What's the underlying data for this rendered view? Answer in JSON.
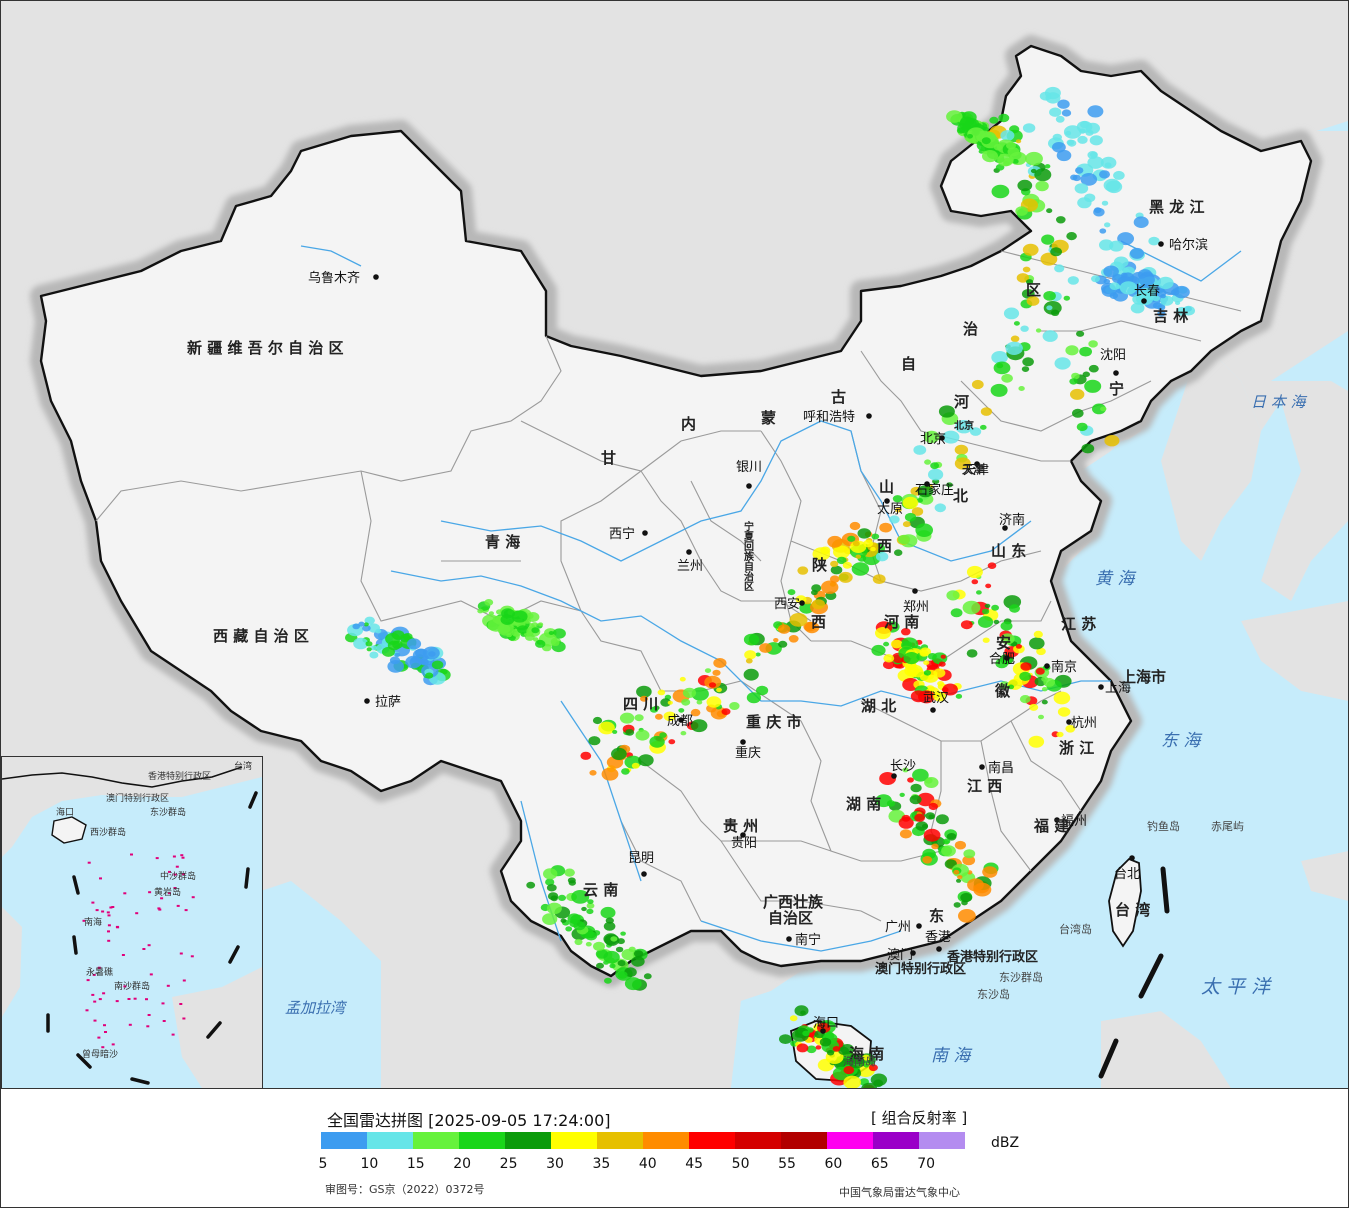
{
  "title": "全国雷达拼图 [2025-09-05 17:24:00]",
  "product": "[ 组合反射率 ]",
  "unit": "dBZ",
  "approval": "审图号：GS京（2022）0372号",
  "source": "中国气象局雷达气象中心",
  "legend": {
    "colors": [
      "#3d9cf0",
      "#66e5e8",
      "#66f23c",
      "#19d619",
      "#0b9b0b",
      "#ffff00",
      "#e6c000",
      "#ff8c00",
      "#ff0000",
      "#d40000",
      "#b20000",
      "#ff00f0",
      "#9a00c8",
      "#b48cf0"
    ],
    "ticks": [
      "5",
      "10",
      "15",
      "20",
      "25",
      "30",
      "35",
      "40",
      "45",
      "50",
      "55",
      "60",
      "65",
      "70"
    ]
  },
  "regions": [
    {
      "name": "新疆维吾尔自治区",
      "label": "新 疆 维 吾 尔 自 治 区"
    },
    {
      "name": "西藏自治区",
      "label": "西 藏 自 治 区"
    },
    {
      "name": "青海",
      "label": "青          海"
    },
    {
      "name": "甘肃",
      "label": "甘"
    },
    {
      "name": "内蒙古自治区-1",
      "label": "内"
    },
    {
      "name": "内蒙古自治区-2",
      "label": "蒙"
    },
    {
      "name": "内蒙古自治区-3",
      "label": "古"
    },
    {
      "name": "内蒙古自治区-4",
      "label": "自"
    },
    {
      "name": "内蒙古自治区-5",
      "label": "治"
    },
    {
      "name": "内蒙古自治区-6",
      "label": "区"
    },
    {
      "name": "黑龙江",
      "label": "黑 龙 江"
    },
    {
      "name": "吉林",
      "label": "吉 林"
    },
    {
      "name": "辽宁",
      "label": "宁"
    },
    {
      "name": "河北-1",
      "label": "河"
    },
    {
      "name": "河北-2",
      "label": "北"
    },
    {
      "name": "山西-1",
      "label": "山"
    },
    {
      "name": "山西-2",
      "label": "西"
    },
    {
      "name": "陕西-1",
      "label": "陕"
    },
    {
      "name": "陕西-2",
      "label": "西"
    },
    {
      "name": "山东",
      "label": "山 东"
    },
    {
      "name": "河南",
      "label": "河   南"
    },
    {
      "name": "江苏",
      "label": "江 苏"
    },
    {
      "name": "安徽-1",
      "label": "安"
    },
    {
      "name": "安徽-2",
      "label": "徽"
    },
    {
      "name": "上海市",
      "label": "上海市"
    },
    {
      "name": "浙江",
      "label": "浙 江"
    },
    {
      "name": "湖北",
      "label": "湖   北"
    },
    {
      "name": "湖南",
      "label": "湖     南"
    },
    {
      "name": "江西",
      "label": "江     西"
    },
    {
      "name": "福建",
      "label": "福 建"
    },
    {
      "name": "四川",
      "label": "四  川"
    },
    {
      "name": "重庆市",
      "label": "重 庆 市"
    },
    {
      "name": "贵州",
      "label": "贵   州"
    },
    {
      "name": "云南",
      "label": "云   南"
    },
    {
      "name": "广西壮族自治区",
      "label": "广西壮族"
    },
    {
      "name": "广西壮族自治区-2",
      "label": "自治区"
    },
    {
      "name": "广东",
      "label": "东"
    },
    {
      "name": "海南",
      "label": "海 南"
    },
    {
      "name": "台湾",
      "label": "台 湾"
    },
    {
      "name": "香港特别行政区",
      "label": "香港特别行政区"
    },
    {
      "name": "澳门特别行政区",
      "label": "澳门特别行政区"
    },
    {
      "name": "宁夏回族自治区",
      "label": "宁夏回族自治区"
    },
    {
      "name": "天津市",
      "label": "天津"
    },
    {
      "name": "北京市",
      "label": "北京"
    }
  ],
  "cities": [
    {
      "name": "乌鲁木齐"
    },
    {
      "name": "拉萨"
    },
    {
      "name": "西宁"
    },
    {
      "name": "兰州"
    },
    {
      "name": "银川"
    },
    {
      "name": "呼和浩特"
    },
    {
      "name": "哈尔滨"
    },
    {
      "name": "长春"
    },
    {
      "name": "沈阳"
    },
    {
      "name": "北京"
    },
    {
      "name": "天津"
    },
    {
      "name": "石家庄"
    },
    {
      "name": "太原"
    },
    {
      "name": "济南"
    },
    {
      "name": "郑州"
    },
    {
      "name": "西安"
    },
    {
      "name": "南京"
    },
    {
      "name": "合肥"
    },
    {
      "name": "上海"
    },
    {
      "name": "杭州"
    },
    {
      "name": "武汉"
    },
    {
      "name": "长沙"
    },
    {
      "name": "南昌"
    },
    {
      "name": "福州"
    },
    {
      "name": "台北"
    },
    {
      "name": "成都"
    },
    {
      "name": "重庆"
    },
    {
      "name": "贵阳"
    },
    {
      "name": "昆明"
    },
    {
      "name": "南宁"
    },
    {
      "name": "广州"
    },
    {
      "name": "香港"
    },
    {
      "name": "澳门"
    },
    {
      "name": "海口"
    }
  ],
  "seas": [
    {
      "name": "日本海",
      "label": "日 本 海"
    },
    {
      "name": "黄海",
      "label": "黄  海"
    },
    {
      "name": "东海",
      "label": "东  海"
    },
    {
      "name": "太平洋",
      "label": "太  平  洋"
    },
    {
      "name": "南海",
      "label": "南       海"
    },
    {
      "name": "孟加拉湾",
      "label": "孟加拉湾"
    }
  ],
  "islands": [
    {
      "name": "钓鱼岛"
    },
    {
      "name": "赤尾屿"
    },
    {
      "name": "台湾岛"
    },
    {
      "name": "东沙群岛"
    },
    {
      "name": "东沙岛"
    },
    {
      "name": "海南岛"
    }
  ],
  "inset": {
    "labels": [
      "海口",
      "香港特别行政区",
      "澳门特别行政区",
      "东沙群岛",
      "西沙群岛",
      "中沙群岛",
      "黄岩岛",
      "南海",
      "永暑礁",
      "南沙群岛",
      "曾母暗沙",
      "台湾"
    ]
  }
}
